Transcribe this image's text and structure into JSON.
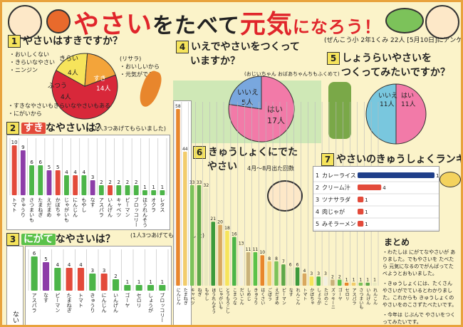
{
  "poster": {
    "title_part1": "やさい",
    "title_part2": "をたべて",
    "title_part3": "元気",
    "title_part4": "になろう！",
    "school_note": "(ぜんこう小 2年1くみ 22人 [5月10日]にアンケートしました)"
  },
  "q1": {
    "num": "1",
    "title": "やさいはすきですか？",
    "left_notes": [
      "・おいしくない",
      "・きらいなやさい",
      "・ニンジン"
    ],
    "right_notes": [
      "(リサラ)",
      "・おいしいから",
      "・元気がでる"
    ],
    "bottom_notes": [
      "・すきなやさいもきらいなやさいもある",
      "・にがいから"
    ],
    "pie_labels": [
      {
        "label": "きらい",
        "count": "4人"
      },
      {
        "label": "すき",
        "count": "14人"
      },
      {
        "label": "ふつう",
        "count": "4人"
      }
    ],
    "chart_data": {
      "type": "pie",
      "categories": [
        "すき",
        "きらい",
        "ふつう"
      ],
      "values": [
        14,
        4,
        4
      ]
    }
  },
  "q2": {
    "num": "2",
    "title_hl": "すき",
    "title_rest": "なやさいは？",
    "note": "(1人3つあげてもらいました)",
    "chart_data": {
      "type": "bar",
      "categories": [
        "トマト",
        "きゅうり",
        "さつまいも",
        "たまねぎ",
        "えだまめ",
        "かぼちゃ",
        "じゃがいも",
        "にんじん",
        "もやし",
        "なす",
        "アスパラ",
        "いんげん",
        "キャベツ",
        "ピーマン",
        "ブロッコリー",
        "ほうれんそう",
        "オクラ",
        "レタス"
      ],
      "values": [
        10,
        9,
        6,
        6,
        5,
        5,
        4,
        4,
        4,
        3,
        2,
        2,
        2,
        2,
        2,
        1,
        1,
        1
      ],
      "ylim": [
        0,
        10
      ]
    }
  },
  "q3": {
    "num": "3",
    "title_hl": "にがて",
    "title_rest": "なやさいは？",
    "note": "(1人3つあげてもらいました)",
    "side_label": "ない",
    "chart_data": {
      "type": "bar",
      "categories": [
        "アスパラ",
        "なす",
        "ピーマン",
        "たまねぎ",
        "トマト",
        "きゅうり",
        "にんじん",
        "いんげん",
        "ゴーヤ",
        "セロリ",
        "しょうが",
        "ブロッコリー"
      ],
      "values": [
        6,
        5,
        4,
        4,
        4,
        3,
        3,
        2,
        1,
        1,
        1,
        1
      ],
      "ylim": [
        0,
        6
      ]
    }
  },
  "q4": {
    "num": "4",
    "title_line1": "いえでやさいをつくって",
    "title_line2": "いますか？",
    "note": "(おじいちゃん おばあちゃんちもふくめて)",
    "pie_labels": [
      {
        "label": "いいえ",
        "count": "5人"
      },
      {
        "label": "はい",
        "count": "17人"
      }
    ],
    "chart_data": {
      "type": "pie",
      "categories": [
        "はい",
        "いいえ"
      ],
      "values": [
        17,
        5
      ]
    }
  },
  "q5": {
    "num": "5",
    "title_line1": "しょうらいやさいを",
    "title_line2": "つくってみたいですか？",
    "pie_labels": [
      {
        "label": "いいえ",
        "count": "11人"
      },
      {
        "label": "はい",
        "count": "11人"
      }
    ],
    "chart_data": {
      "type": "pie",
      "categories": [
        "はい",
        "いいえ"
      ],
      "values": [
        11,
        11
      ]
    }
  },
  "q6": {
    "num": "6",
    "title_line1": "きゅうしょくにでた",
    "title_line2": "やさい",
    "note": "4月〜8月出た回数",
    "chart_data": {
      "type": "bar",
      "categories": [
        "にんじん",
        "たまねぎ",
        "キャベツ",
        "ねぎ",
        "もやし",
        "ほうれんそう",
        "じゃがいも",
        "とうもろこし",
        "こまつな",
        "だいこん",
        "しめじ",
        "きゅうり",
        "はくさい",
        "ごぼう",
        "えだまめ",
        "ピーマン",
        "なす",
        "れんこん",
        "トマト",
        "かぼちゃ",
        "しょうが",
        "たけのこ",
        "ズッキーニ",
        "ゴーヤ",
        "セロリ",
        "アスパラ",
        "さつまいも",
        "いんげん",
        "れんこん"
      ],
      "values": [
        58,
        44,
        33,
        33,
        32,
        21,
        20,
        18,
        16,
        13,
        11,
        11,
        10,
        8,
        8,
        7,
        6,
        6,
        4,
        3,
        3,
        3,
        2,
        2,
        1,
        1,
        1,
        1,
        1
      ],
      "ylim": [
        0,
        58
      ]
    }
  },
  "q7": {
    "num": "7",
    "title": "やさいのきゅうしょくランキング",
    "chart_data": {
      "type": "bar",
      "categories": [
        "カレーライス",
        "クリーム汁",
        "ツナサラダ",
        "肉じゃが",
        "みそラーメン"
      ],
      "values": [
        13,
        4,
        1,
        1,
        1
      ],
      "xlim": [
        0,
        13
      ]
    }
  },
  "summary": {
    "title": "まとめ",
    "lines": [
      "・わたしは にがてなやさいが ありました。でもやさいを たべたら 元気になるのでがんばってたべようとおもいました。",
      "・きゅうしょくには、たくさん やさいがでているとわかりました。これからも きゅうしょくの やさいをのこさずたべたいです。",
      "・今年は じぶんで やさいをつくってみたいです。"
    ]
  },
  "colors": {
    "red": "#e34a3a",
    "green": "#4cb548",
    "pink": "#f27aa8",
    "blue": "#3d7fd0",
    "yellow": "#f6e45b",
    "orange": "#e8a33d",
    "purple": "#8d3da8"
  }
}
